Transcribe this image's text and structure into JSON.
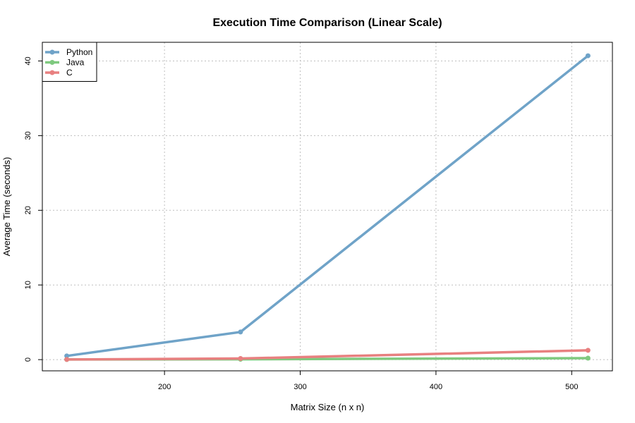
{
  "chart_data": {
    "type": "line",
    "title": "Execution Time Comparison (Linear Scale)",
    "xlabel": "Matrix Size (n x n)",
    "ylabel": "Average Time (seconds)",
    "xlim": [
      110,
      530
    ],
    "ylim": [
      -1.5,
      42.5
    ],
    "xticks": [
      200,
      300,
      400,
      500
    ],
    "yticks": [
      0,
      10,
      20,
      30,
      40
    ],
    "grid": true,
    "legend_position": "top-left",
    "series": [
      {
        "name": "Python",
        "color": "#6fa3c8",
        "x": [
          128,
          256,
          512
        ],
        "y": [
          0.5,
          3.7,
          40.7
        ]
      },
      {
        "name": "Java",
        "color": "#7fc97f",
        "x": [
          128,
          256,
          512
        ],
        "y": [
          0.02,
          0.05,
          0.2
        ]
      },
      {
        "name": "C",
        "color": "#e88080",
        "x": [
          128,
          256,
          512
        ],
        "y": [
          0.02,
          0.15,
          1.25
        ]
      }
    ]
  }
}
